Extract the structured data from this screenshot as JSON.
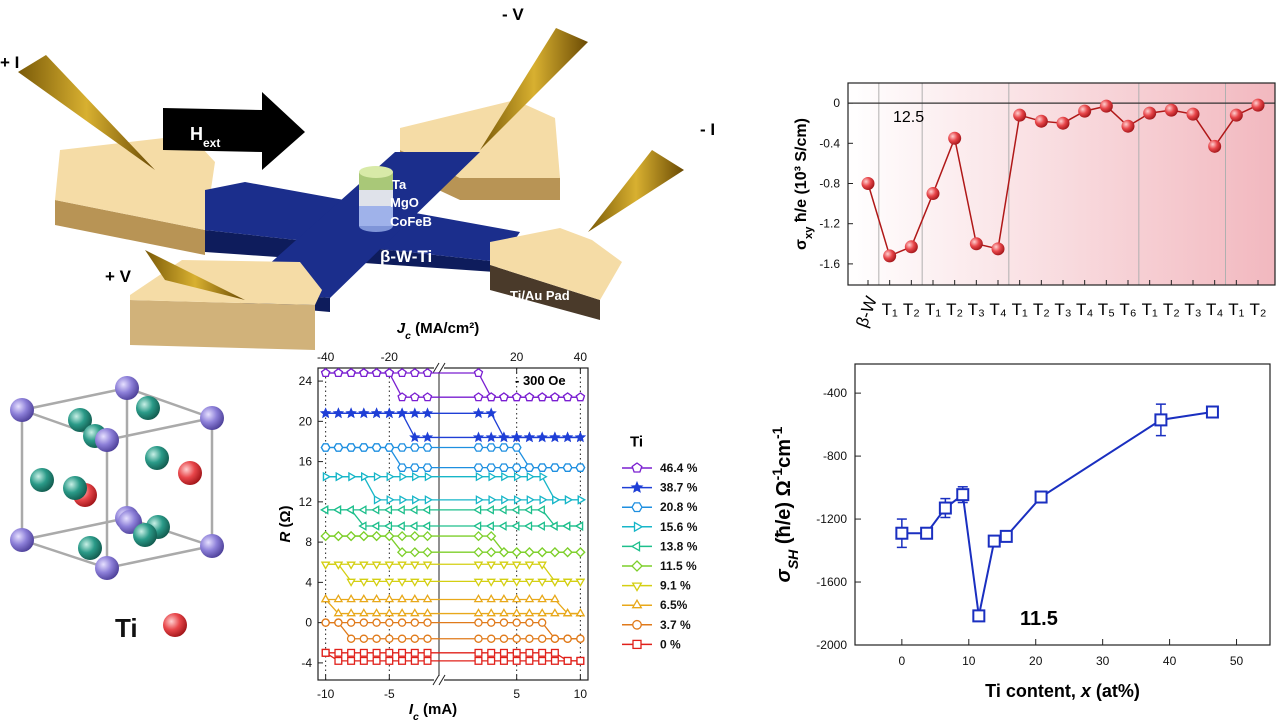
{
  "device": {
    "plus_i": "+ I",
    "minus_v": "- V",
    "minus_i": "- I",
    "plus_v": "+ V",
    "h_main": "H",
    "h_sub": "ext",
    "ta": "Ta",
    "mgo": "MgO",
    "cofeb": "CoFeB",
    "channel": "β-W-Ti",
    "pad": "Ti/Au Pad"
  },
  "crystal": {
    "legend": "Ti"
  },
  "chart_data": [
    {
      "type": "category-line",
      "y_label": {
        "symbol": "σ",
        "sub": "xy",
        "rest": " ħ/e (10³ S/cm)"
      },
      "categories": [
        "β-W",
        "T₁",
        "T₂",
        "T₁",
        "T₂",
        "T₃",
        "T₄",
        "T₁",
        "T₂",
        "T₃",
        "T₄",
        "T₅",
        "T₆",
        "T₁",
        "T₂",
        "T₃",
        "T₄",
        "T₁",
        "T₂"
      ],
      "values": [
        -0.8,
        -1.52,
        -1.43,
        -0.9,
        -0.35,
        -1.4,
        -1.45,
        -0.12,
        -0.18,
        -0.2,
        -0.08,
        -0.03,
        -0.23,
        -0.1,
        -0.07,
        -0.11,
        -0.43,
        -0.12,
        -0.02
      ],
      "color": "#e84a4a",
      "ylim": [
        -1.81,
        0.2
      ],
      "yticks": [
        0,
        -0.4,
        -0.8,
        -1.2,
        -1.6
      ],
      "annotation": "12.5"
    },
    {
      "type": "hysteresis",
      "x_label": {
        "symbol": "I",
        "sub": "c",
        "rest": " (mA)"
      },
      "x2_label": {
        "symbol": "J",
        "sub": "c",
        "rest": " (MA/cm²)"
      },
      "y_label": {
        "symbol": "R",
        "rest": " (Ω)"
      },
      "annotation": "- 300 Oe",
      "legend_title": "Ti",
      "x": [
        -10,
        -9,
        -8,
        -7,
        -6,
        -5,
        -4,
        -3,
        -2,
        2,
        3,
        4,
        5,
        6,
        7,
        8,
        9,
        10
      ],
      "xlim": [
        -10.6,
        10.6
      ],
      "xticks": [
        -10,
        -5,
        5,
        10
      ],
      "x2lim": [
        -42.4,
        42.4
      ],
      "x2ticks": [
        -40,
        -20,
        20,
        40
      ],
      "ylim": [
        -5.7,
        25.3
      ],
      "yticks": [
        -4,
        0,
        4,
        8,
        12,
        16,
        20,
        24
      ],
      "series": [
        {
          "name": "46.4 %",
          "color": "#7a1fd1",
          "marker": "pentagon",
          "values": [
            24.8,
            24.8,
            24.8,
            24.8,
            24.8,
            24.8,
            24.8,
            24.8,
            24.8,
            24.8,
            22.4,
            22.4,
            22.4,
            22.4,
            22.4,
            22.4,
            22.4,
            22.4
          ],
          "values_down": [
            24.8,
            24.8,
            24.8,
            24.8,
            24.8,
            24.8,
            22.4,
            22.4,
            22.4,
            22.4,
            22.4,
            22.4,
            22.4,
            22.4,
            22.4,
            22.4,
            22.4,
            22.4
          ]
        },
        {
          "name": "38.7 %",
          "color": "#1f3fd6",
          "marker": "star",
          "values": [
            20.8,
            20.8,
            20.8,
            20.8,
            20.8,
            20.8,
            20.8,
            20.8,
            20.8,
            20.8,
            20.8,
            18.4,
            18.4,
            18.4,
            18.4,
            18.4,
            18.4,
            18.4
          ],
          "values_down": [
            20.8,
            20.8,
            20.8,
            20.8,
            20.8,
            20.8,
            20.8,
            18.4,
            18.4,
            18.4,
            18.4,
            18.4,
            18.4,
            18.4,
            18.4,
            18.4,
            18.4,
            18.4
          ]
        },
        {
          "name": "20.8 %",
          "color": "#1e8fe0",
          "marker": "hexagon",
          "values": [
            17.4,
            17.4,
            17.4,
            17.4,
            17.4,
            17.4,
            17.4,
            17.4,
            17.4,
            17.4,
            17.4,
            17.4,
            17.4,
            15.4,
            15.4,
            15.4,
            15.4,
            15.4
          ],
          "values_down": [
            17.4,
            17.4,
            17.4,
            17.4,
            17.4,
            17.4,
            15.4,
            15.4,
            15.4,
            15.4,
            15.4,
            15.4,
            15.4,
            15.4,
            15.4,
            15.4,
            15.4,
            15.4
          ]
        },
        {
          "name": "15.6 %",
          "color": "#17b6c8",
          "marker": "triangle-right",
          "values": [
            14.5,
            14.5,
            14.5,
            14.5,
            14.5,
            14.5,
            14.5,
            14.5,
            14.5,
            14.5,
            14.5,
            14.5,
            14.5,
            14.5,
            14.5,
            12.2,
            12.2,
            12.2
          ],
          "values_down": [
            14.5,
            14.5,
            14.5,
            14.5,
            12.2,
            12.2,
            12.2,
            12.2,
            12.2,
            12.2,
            12.2,
            12.2,
            12.2,
            12.2,
            12.2,
            12.2,
            12.2,
            12.2
          ]
        },
        {
          "name": "13.8 %",
          "color": "#1dbf8c",
          "marker": "triangle-left",
          "values": [
            11.2,
            11.2,
            11.2,
            11.2,
            11.2,
            11.2,
            11.2,
            11.2,
            11.2,
            11.2,
            11.2,
            11.2,
            11.2,
            11.2,
            11.2,
            9.6,
            9.6,
            9.6
          ],
          "values_down": [
            11.2,
            11.2,
            11.2,
            9.6,
            9.6,
            9.6,
            9.6,
            9.6,
            9.6,
            9.6,
            9.6,
            9.6,
            9.6,
            9.6,
            9.6,
            9.6,
            9.6,
            9.6
          ]
        },
        {
          "name": "11.5 %",
          "color": "#7dcf2a",
          "marker": "diamond",
          "values": [
            8.6,
            8.6,
            8.6,
            8.6,
            8.6,
            8.6,
            8.6,
            8.6,
            8.6,
            8.6,
            8.6,
            7,
            7,
            7,
            7,
            7,
            7,
            7
          ],
          "values_down": [
            8.6,
            8.6,
            8.6,
            8.6,
            8.6,
            8.6,
            7,
            7,
            7,
            7,
            7,
            7,
            7,
            7,
            7,
            7,
            7,
            7
          ]
        },
        {
          "name": "9.1 %",
          "color": "#d4cf12",
          "marker": "triangle-down",
          "values": [
            5.8,
            5.8,
            5.8,
            5.8,
            5.8,
            5.8,
            5.8,
            5.8,
            5.8,
            5.8,
            5.8,
            5.8,
            5.8,
            5.8,
            5.8,
            4.1,
            4.1,
            4.1
          ],
          "values_down": [
            5.8,
            5.8,
            4.1,
            4.1,
            4.1,
            4.1,
            4.1,
            4.1,
            4.1,
            4.1,
            4.1,
            4.1,
            4.1,
            4.1,
            4.1,
            4.1,
            4.1,
            4.1
          ]
        },
        {
          "name": "6.5%",
          "color": "#e8a81a",
          "marker": "triangle-up",
          "values": [
            2.3,
            2.3,
            2.3,
            2.3,
            2.3,
            2.3,
            2.3,
            2.3,
            2.3,
            2.3,
            2.3,
            2.3,
            2.3,
            2.3,
            2.3,
            2.3,
            0.9,
            0.9
          ],
          "values_down": [
            2.3,
            0.9,
            0.9,
            0.9,
            0.9,
            0.9,
            0.9,
            0.9,
            0.9,
            0.9,
            0.9,
            0.9,
            0.9,
            0.9,
            0.9,
            0.9,
            0.9,
            0.9
          ]
        },
        {
          "name": "3.7 %",
          "color": "#e07a1a",
          "marker": "circle",
          "values": [
            0,
            0,
            0,
            0,
            0,
            0,
            0,
            0,
            0,
            0,
            0,
            0,
            0,
            0,
            0,
            -1.6,
            -1.6,
            -1.6
          ],
          "values_down": [
            0,
            0,
            -1.6,
            -1.6,
            -1.6,
            -1.6,
            -1.6,
            -1.6,
            -1.6,
            -1.6,
            -1.6,
            -1.6,
            -1.6,
            -1.6,
            -1.6,
            -1.6,
            -1.6,
            -1.6
          ]
        },
        {
          "name": "0 %",
          "color": "#e0201a",
          "marker": "square",
          "values": [
            -3,
            -3,
            -3,
            -3,
            -3,
            -3,
            -3,
            -3,
            -3,
            -3,
            -3,
            -3,
            -3,
            -3,
            -3,
            -3,
            -3.8,
            -3.8
          ],
          "values_down": [
            -3,
            -3.8,
            -3.8,
            -3.8,
            -3.8,
            -3.8,
            -3.8,
            -3.8,
            -3.8,
            -3.8,
            -3.8,
            -3.8,
            -3.8,
            -3.8,
            -3.8,
            -3.8,
            -3.8,
            -3.8
          ]
        }
      ]
    },
    {
      "type": "errorbar-line",
      "x_label": {
        "pre": "Ti content, ",
        "var": "x",
        "post": " (at%)"
      },
      "y_label": {
        "symbol": "σ",
        "sub": "SH",
        "rest": " (ħ/e) Ω",
        "sup1": "-1",
        "unit": "cm",
        "sup2": "-1"
      },
      "x": [
        0,
        3.7,
        6.5,
        9.1,
        11.5,
        13.8,
        15.6,
        20.8,
        38.7,
        46.4
      ],
      "values": [
        -1290,
        -1290,
        -1130,
        -1045,
        -1815,
        -1340,
        -1310,
        -1060,
        -570,
        -520
      ],
      "errors": [
        90,
        20,
        60,
        50,
        25,
        20,
        20,
        20,
        100,
        20
      ],
      "color": "#1a2fc0",
      "xlim": [
        -7,
        55
      ],
      "xticks": [
        0,
        10,
        20,
        30,
        40,
        50
      ],
      "ylim": [
        -2000,
        -215
      ],
      "yticks": [
        -2000,
        -1600,
        -1200,
        -800,
        -400
      ],
      "annotation": "11.5"
    }
  ]
}
